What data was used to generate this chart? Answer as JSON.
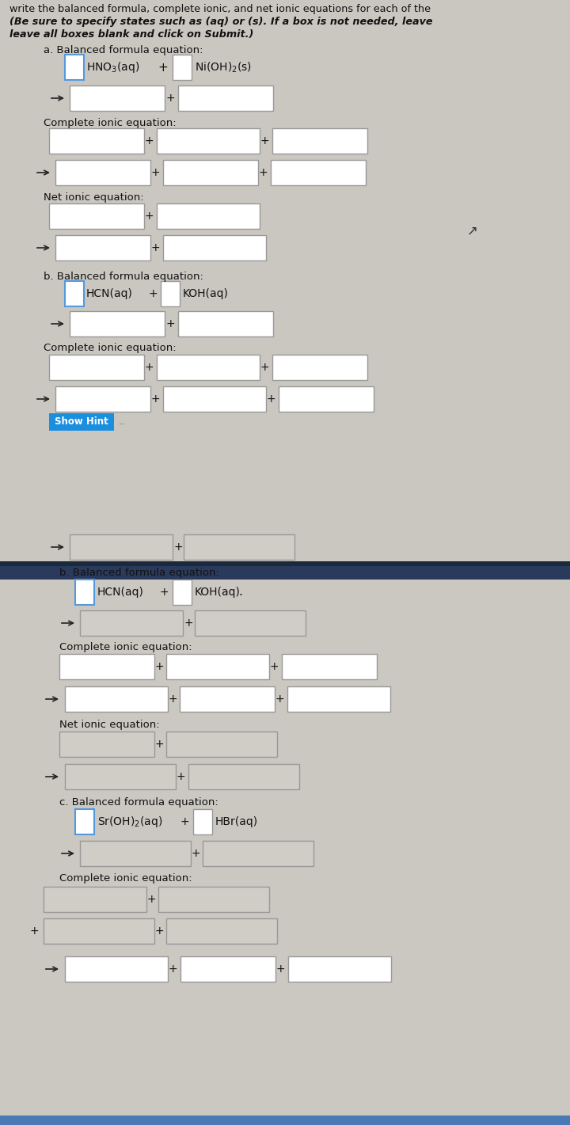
{
  "bg_color_top": "#cac6c0",
  "bg_color_bottom": "#cbc7c1",
  "divider_color_dark": "#2a3a5c",
  "divider_color_mid": "#3a5a8a",
  "divider_color_light": "#4a7ab5",
  "box_facecolor_top": "#e8e4de",
  "box_facecolor_bottom": "#d8d4ce",
  "box_edge_color": "#999999",
  "box_edge_color_blue": "#5599dd",
  "text_color": "#111111",
  "hint_btn_color": "#1a8fe0",
  "hint_btn_text": "Show Hint",
  "title_line1": "write the balanced formula, complete ionic, and net ionic equations for each of the",
  "subtitle_line1": "(Be sure to specify states such as (aq) or (s). If a box is not needed, leave",
  "subtitle_line2": "leave all boxes blank and click on Submit.)"
}
